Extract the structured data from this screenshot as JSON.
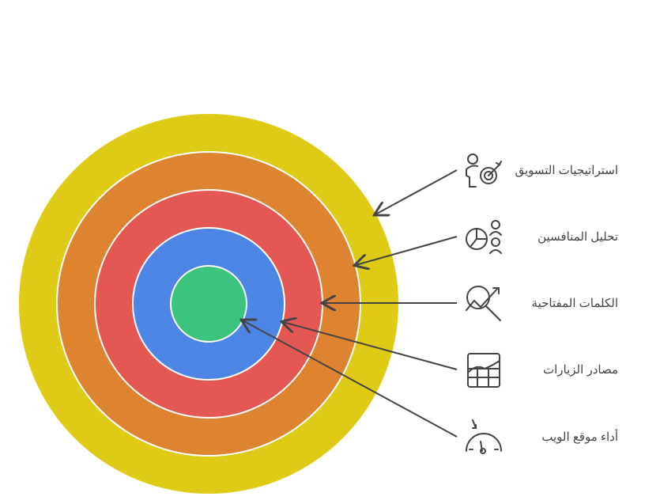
{
  "rings": [
    {
      "label": "استراتيجيات التسويق",
      "color": "#DFCB16",
      "icon": "person-target-icon"
    },
    {
      "label": "تحليل المنافسين",
      "color": "#DE832F",
      "icon": "pie-chart-people-icon"
    },
    {
      "label": "الكلمات المفتاحية",
      "color": "#E45753",
      "icon": "magnifier-trend-icon"
    },
    {
      "label": "مصادر الزيارات",
      "color": "#4C85E3",
      "icon": "grid-chart-icon"
    },
    {
      "label": "أداء موقع الويب",
      "color": "#3CC47E",
      "icon": "gauge-icon"
    }
  ]
}
